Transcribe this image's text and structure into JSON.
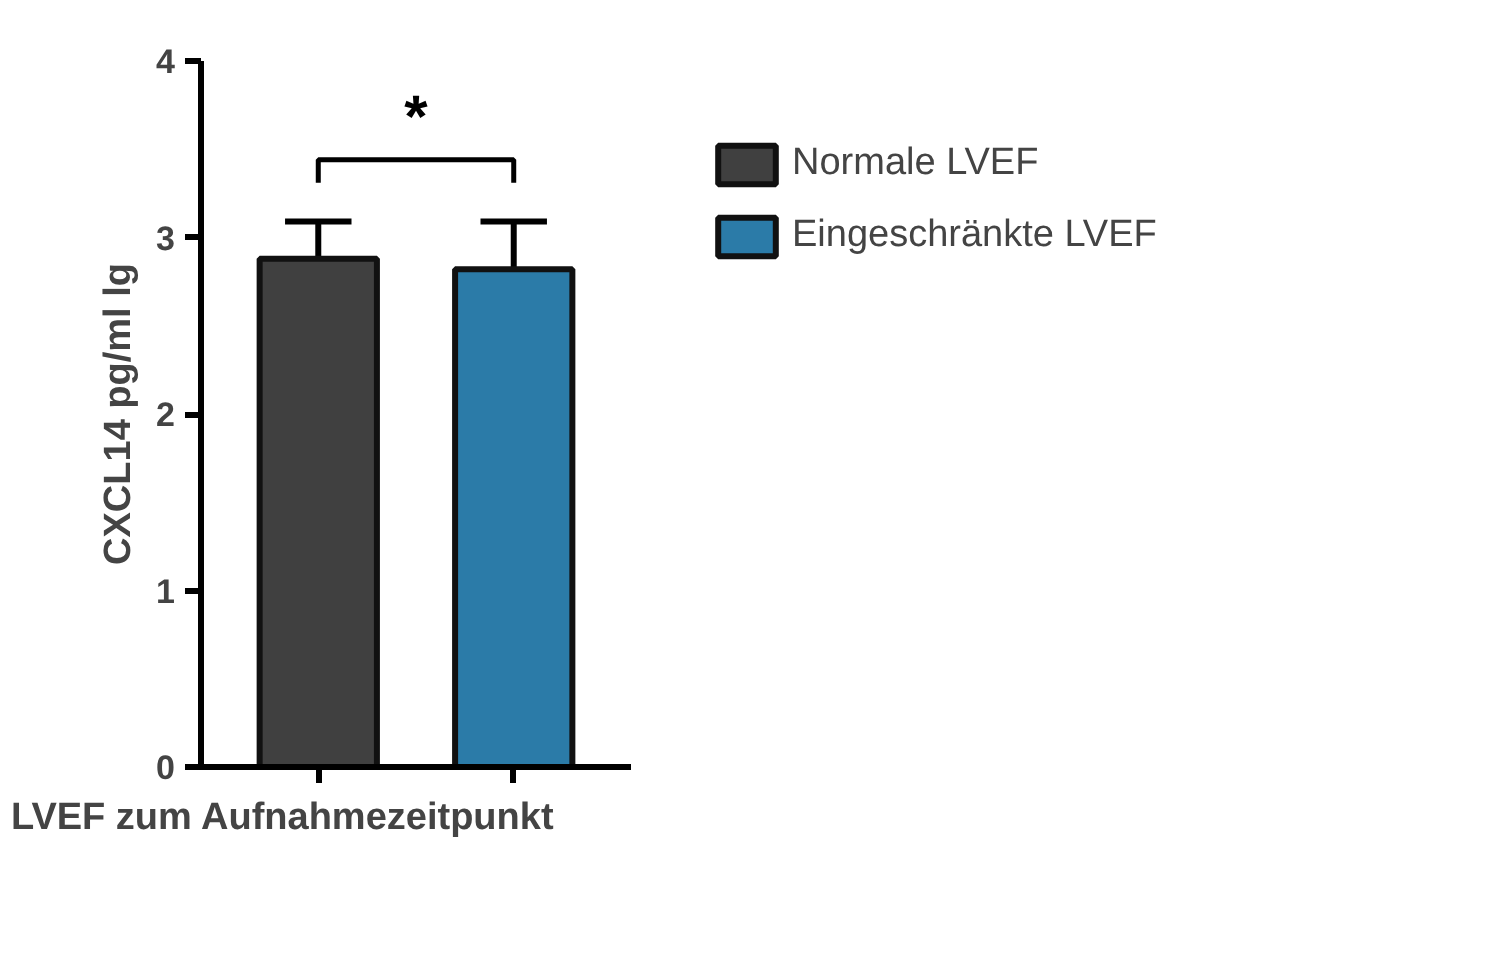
{
  "chart_data": {
    "type": "bar",
    "ylabel": "CXCL14 pg/ml lg",
    "xlabel": "LVEF zum Aufnahmezeitpunkt",
    "categories": [
      null,
      null
    ],
    "series": [
      {
        "name": "Normale LVEF",
        "color": "#404040",
        "values": [
          2.88,
          null
        ],
        "errors": [
          [
            2.88,
            3.09
          ],
          null
        ]
      },
      {
        "name": "Eingeschränkte LVEF",
        "color": "#2b7ba8",
        "values": [
          null,
          2.82
        ],
        "errors": [
          null,
          [
            2.82,
            3.09
          ]
        ]
      }
    ],
    "ylim": [
      0,
      4
    ],
    "yticks": [
      0,
      1,
      2,
      3,
      4
    ],
    "grid": false,
    "legend": "top right",
    "annotations": [
      "*"
    ]
  }
}
